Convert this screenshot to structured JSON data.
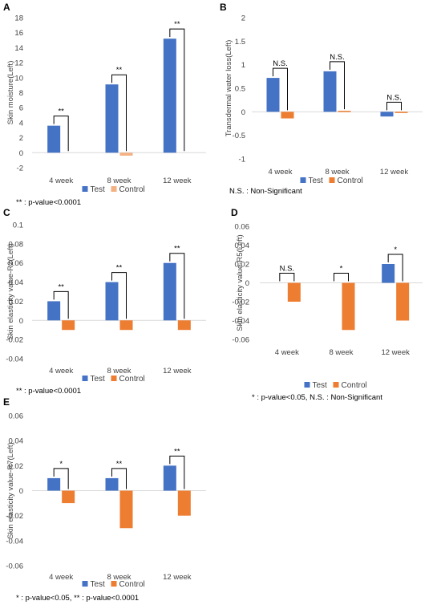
{
  "colors": {
    "test": "#4472c4",
    "control": "#ed7d31",
    "control_hatched": "#f4b183",
    "axis": "#d9d9d9",
    "text": "#404040"
  },
  "chart_data": [
    {
      "panel": "A",
      "type": "bar",
      "categories": [
        "4 week",
        "8 week",
        "12 week"
      ],
      "ylabel": "Skin moisture(Left)",
      "ylim": [
        -2,
        18
      ],
      "yticks": [
        "-2",
        "0",
        "2",
        "4",
        "6",
        "8",
        "10",
        "12",
        "14",
        "16",
        "18"
      ],
      "series": [
        {
          "name": "Test",
          "values": [
            3.6,
            9.1,
            15.2
          ]
        },
        {
          "name": "Control",
          "values": [
            0.0,
            -0.4,
            0.0
          ]
        }
      ],
      "significance": [
        "**",
        "**",
        "**"
      ],
      "note": "** : p-value<0.0001",
      "legend": "bottom"
    },
    {
      "panel": "B",
      "type": "bar",
      "categories": [
        "4 week",
        "8 week",
        "12 week"
      ],
      "ylabel": "Transdermal water loss(Left)",
      "ylim": [
        -1,
        2
      ],
      "yticks": [
        "-1",
        "-0.5",
        "0",
        "0.5",
        "1",
        "1.5",
        "2"
      ],
      "series": [
        {
          "name": "Test",
          "values": [
            0.72,
            0.86,
            -0.1
          ]
        },
        {
          "name": "Control",
          "values": [
            -0.14,
            0.02,
            -0.02
          ]
        }
      ],
      "significance": [
        "N.S.",
        "N.S.",
        "N.S."
      ],
      "note": "N.S. : Non-Significant",
      "legend": "bottom"
    },
    {
      "panel": "C",
      "type": "bar",
      "categories": [
        "4 week",
        "8 week",
        "12 week"
      ],
      "ylabel": "Skin elasticity value-R2(Left)",
      "ylim": [
        -0.04,
        0.1
      ],
      "yticks": [
        "-0.04",
        "-0.02",
        "0",
        "0.02",
        "0.04",
        "0.06",
        "0.08",
        "0.1"
      ],
      "series": [
        {
          "name": "Test",
          "values": [
            0.02,
            0.04,
            0.06
          ]
        },
        {
          "name": "Control",
          "values": [
            -0.01,
            -0.01,
            -0.01
          ]
        }
      ],
      "significance": [
        "**",
        "**",
        "**"
      ],
      "note": "** : p-value<0.0001",
      "legend": "bottom"
    },
    {
      "panel": "D",
      "type": "bar",
      "categories": [
        "4 week",
        "8 week",
        "12 week"
      ],
      "ylabel": "Skin elasticity value-R5(Left)",
      "ylim": [
        -0.06,
        0.06
      ],
      "yticks": [
        "-0.06",
        "-0.04",
        "-0.02",
        "0",
        "0.02",
        "0.04",
        "0.06"
      ],
      "series": [
        {
          "name": "Test",
          "values": [
            0.0,
            0.0,
            0.02
          ]
        },
        {
          "name": "Control",
          "values": [
            -0.02,
            -0.05,
            -0.04
          ]
        }
      ],
      "significance": [
        "N.S.",
        "*",
        "*"
      ],
      "note": "* : p-value<0.05, N.S. : Non-Significant",
      "legend": "bottom"
    },
    {
      "panel": "E",
      "type": "bar",
      "categories": [
        "4 week",
        "8 week",
        "12 week"
      ],
      "ylabel": "Skin elasticity value-R7(Left)",
      "ylim": [
        -0.06,
        0.06
      ],
      "yticks": [
        "-0.06",
        "-0.04",
        "-0.02",
        "0",
        "0.02",
        "0.04",
        "0.06"
      ],
      "series": [
        {
          "name": "Test",
          "values": [
            0.01,
            0.01,
            0.02
          ]
        },
        {
          "name": "Control",
          "values": [
            -0.01,
            -0.03,
            -0.02
          ]
        }
      ],
      "significance": [
        "*",
        "**",
        "**"
      ],
      "note": "* : p-value<0.05, ** : p-value<0.0001",
      "legend": "bottom"
    }
  ]
}
